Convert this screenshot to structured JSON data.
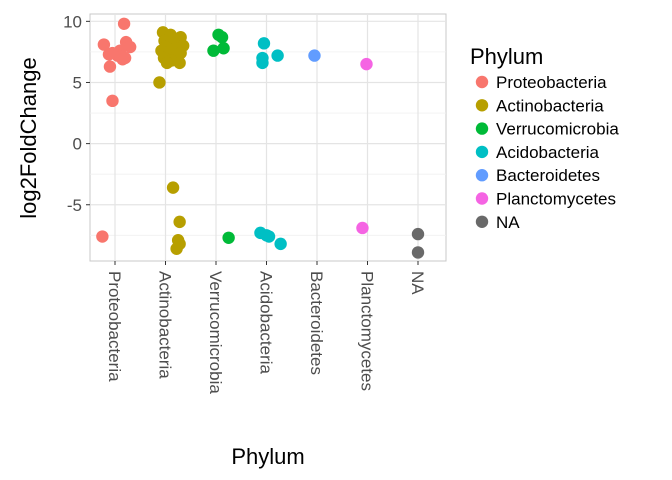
{
  "chart_data": {
    "type": "scatter",
    "title": "",
    "xlabel": "Phylum",
    "ylabel": "log2FoldChange",
    "ylim": [
      -9.6,
      10.6
    ],
    "yticks": [
      -5,
      0,
      5,
      10
    ],
    "grid": true,
    "legend": {
      "title": "Phylum",
      "placement": "right",
      "entries": [
        {
          "label": "Proteobacteria",
          "color": "#F8766D"
        },
        {
          "label": "Actinobacteria",
          "color": "#B79F00"
        },
        {
          "label": "Verrucomicrobia",
          "color": "#00BA38"
        },
        {
          "label": "Acidobacteria",
          "color": "#00BFC4"
        },
        {
          "label": "Bacteroidetes",
          "color": "#619CFF"
        },
        {
          "label": "Planctomycetes",
          "color": "#F564E3"
        },
        {
          "label": "NA",
          "color": "#696969"
        }
      ]
    },
    "categories": [
      "Proteobacteria",
      "Actinobacteria",
      "Verrucomicrobia",
      "Acidobacteria",
      "Bacteroidetes",
      "Planctomycetes",
      "NA"
    ],
    "series": [
      {
        "name": "Proteobacteria",
        "color": "#F8766D",
        "points": [
          {
            "x": -0.22,
            "y": 8.1
          },
          {
            "x": 0.18,
            "y": 9.8
          },
          {
            "x": 0.22,
            "y": 8.3
          },
          {
            "x": 0.3,
            "y": 7.9
          },
          {
            "x": 0.1,
            "y": 7.6
          },
          {
            "x": 0.05,
            "y": 7.2
          },
          {
            "x": -0.05,
            "y": 7.4
          },
          {
            "x": 0.12,
            "y": 7.1
          },
          {
            "x": -0.12,
            "y": 7.3
          },
          {
            "x": 0.15,
            "y": 6.9
          },
          {
            "x": 0.2,
            "y": 7.0
          },
          {
            "x": -0.1,
            "y": 6.3
          },
          {
            "x": -0.05,
            "y": 3.5
          },
          {
            "x": -0.25,
            "y": -7.6
          }
        ]
      },
      {
        "name": "Actinobacteria",
        "color": "#B79F00",
        "points": [
          {
            "x": -0.05,
            "y": 9.1
          },
          {
            "x": 0.1,
            "y": 8.9
          },
          {
            "x": 0.3,
            "y": 8.7
          },
          {
            "x": -0.02,
            "y": 8.4
          },
          {
            "x": 0.18,
            "y": 8.2
          },
          {
            "x": 0.35,
            "y": 8.0
          },
          {
            "x": 0.0,
            "y": 7.9
          },
          {
            "x": 0.2,
            "y": 7.8
          },
          {
            "x": -0.08,
            "y": 7.6
          },
          {
            "x": 0.08,
            "y": 7.5
          },
          {
            "x": 0.3,
            "y": 7.4
          },
          {
            "x": 0.22,
            "y": 7.2
          },
          {
            "x": -0.03,
            "y": 7.0
          },
          {
            "x": 0.12,
            "y": 6.8
          },
          {
            "x": 0.28,
            "y": 6.6
          },
          {
            "x": 0.03,
            "y": 6.6
          },
          {
            "x": -0.12,
            "y": 5.0
          },
          {
            "x": 0.15,
            "y": -3.6
          },
          {
            "x": 0.28,
            "y": -6.4
          },
          {
            "x": 0.25,
            "y": -7.9
          },
          {
            "x": 0.28,
            "y": -8.2
          },
          {
            "x": 0.22,
            "y": -8.6
          }
        ]
      },
      {
        "name": "Verrucomicrobia",
        "color": "#00BA38",
        "points": [
          {
            "x": 0.05,
            "y": 8.9
          },
          {
            "x": 0.12,
            "y": 8.7
          },
          {
            "x": 0.15,
            "y": 7.8
          },
          {
            "x": -0.05,
            "y": 7.6
          },
          {
            "x": 0.25,
            "y": -7.7
          }
        ]
      },
      {
        "name": "Acidobacteria",
        "color": "#00BFC4",
        "points": [
          {
            "x": -0.05,
            "y": 8.2
          },
          {
            "x": -0.08,
            "y": 7.0
          },
          {
            "x": 0.22,
            "y": 7.2
          },
          {
            "x": -0.08,
            "y": 6.6
          },
          {
            "x": -0.12,
            "y": -7.3
          },
          {
            "x": 0.0,
            "y": -7.5
          },
          {
            "x": 0.05,
            "y": -7.6
          },
          {
            "x": 0.28,
            "y": -8.2
          }
        ]
      },
      {
        "name": "Bacteroidetes",
        "color": "#619CFF",
        "points": [
          {
            "x": -0.05,
            "y": 7.2
          }
        ]
      },
      {
        "name": "Planctomycetes",
        "color": "#F564E3",
        "points": [
          {
            "x": -0.02,
            "y": 6.5
          },
          {
            "x": -0.1,
            "y": -6.9
          }
        ]
      },
      {
        "name": "NA",
        "color": "#696969",
        "points": [
          {
            "x": 0.0,
            "y": -7.4
          },
          {
            "x": 0.0,
            "y": -8.9
          }
        ]
      }
    ]
  }
}
